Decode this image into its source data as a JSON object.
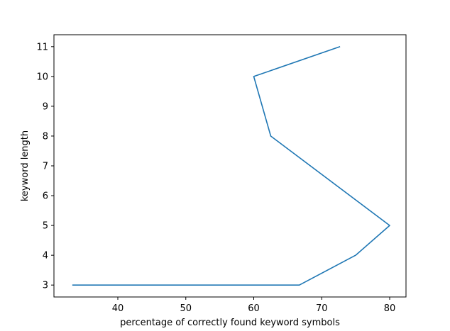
{
  "chart_data": {
    "type": "line",
    "title": "",
    "xlabel": "percentage of correctly found keyword symbols",
    "ylabel": "keyword length",
    "xlim": [
      30.6,
      82.4
    ],
    "ylim": [
      2.6,
      11.4
    ],
    "xticks": [
      40,
      50,
      60,
      70,
      80
    ],
    "yticks": [
      3,
      4,
      5,
      6,
      7,
      8,
      9,
      10,
      11
    ],
    "grid": false,
    "legend": "none",
    "series": [
      {
        "color": "#1f77b4",
        "points": [
          {
            "x": 33.3,
            "y": 3
          },
          {
            "x": 66.7,
            "y": 3
          },
          {
            "x": 75.0,
            "y": 4
          },
          {
            "x": 80.0,
            "y": 5
          },
          {
            "x": 62.5,
            "y": 8
          },
          {
            "x": 60.0,
            "y": 10
          },
          {
            "x": 72.7,
            "y": 11
          }
        ]
      }
    ]
  }
}
